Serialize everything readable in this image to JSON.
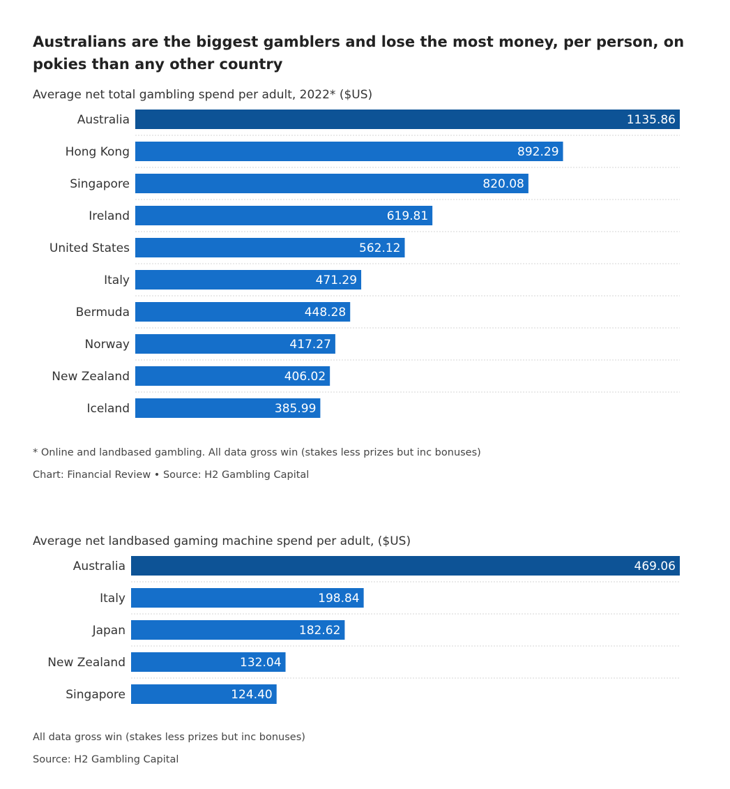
{
  "headline": "Australians are the biggest gamblers and lose the most money, per person, on pokies than any other country",
  "colors": {
    "highlight_bar": "#0d5396",
    "bar": "#156fca",
    "value_label": "#ffffff",
    "category_label": "#333333",
    "divider": "#d6d6d6"
  },
  "chart_data": [
    {
      "type": "bar",
      "orientation": "horizontal",
      "title": "Average net total gambling spend per adult, 2022* ($US)",
      "categories": [
        "Australia",
        "Hong Kong",
        "Singapore",
        "Ireland",
        "United States",
        "Italy",
        "Bermuda",
        "Norway",
        "New Zealand",
        "Iceland"
      ],
      "values": [
        1135.86,
        892.29,
        820.08,
        619.81,
        562.12,
        471.29,
        448.28,
        417.27,
        406.02,
        385.99
      ],
      "value_labels": [
        "1135.86",
        "892.29",
        "820.08",
        "619.81",
        "562.12",
        "471.29",
        "448.28",
        "417.27",
        "406.02",
        "385.99"
      ],
      "highlight": "Australia",
      "xlim": [
        0,
        1135.86
      ],
      "grid": false,
      "notes": [
        "* Online and landbased gambling. All data gross win (stakes less prizes but inc bonuses)",
        "Chart: Financial Review • Source: H2 Gambling Capital"
      ]
    },
    {
      "type": "bar",
      "orientation": "horizontal",
      "title": "Average net landbased gaming machine spend per adult, ($US)",
      "categories": [
        "Australia",
        "Italy",
        "Japan",
        "New Zealand",
        "Singapore"
      ],
      "values": [
        469.06,
        198.84,
        182.62,
        132.04,
        124.4
      ],
      "value_labels": [
        "469.06",
        "198.84",
        "182.62",
        "132.04",
        "124.40"
      ],
      "highlight": "Australia",
      "xlim": [
        0,
        469.06
      ],
      "grid": false,
      "notes": [
        "All data gross win (stakes less prizes but inc bonuses)",
        "Source: H2 Gambling Capital"
      ]
    }
  ]
}
